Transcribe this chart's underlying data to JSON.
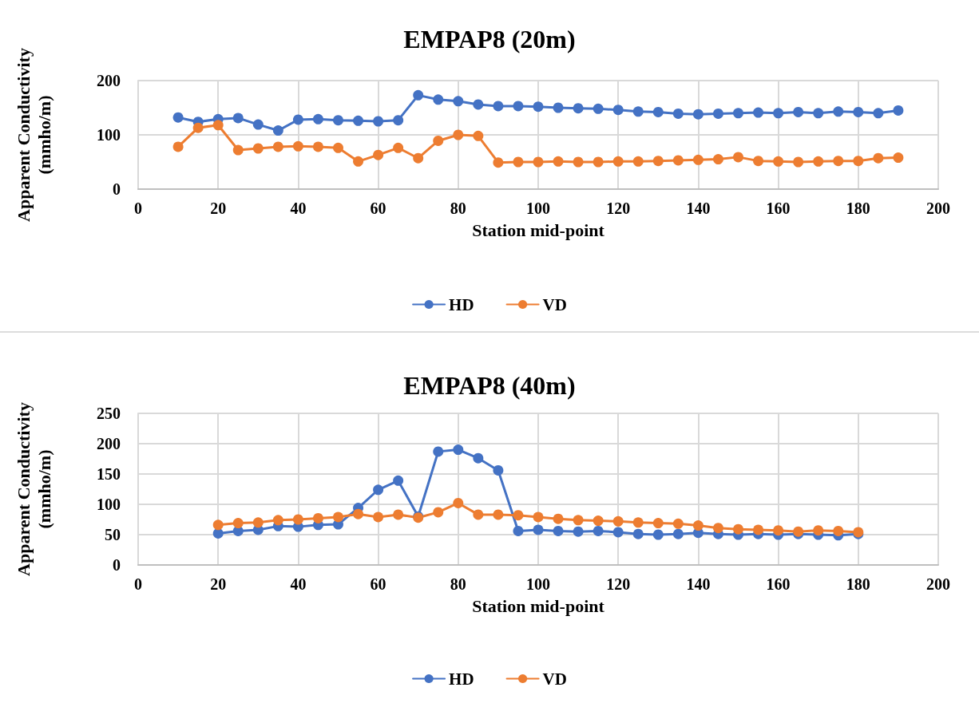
{
  "chart_data": [
    {
      "type": "line",
      "title": "EMPAP8 (20m)",
      "xlabel": "Station mid-point",
      "ylabel": "Apparent Conductivity\n(mmho/m)",
      "x": [
        10,
        15,
        20,
        25,
        30,
        35,
        40,
        45,
        50,
        55,
        60,
        65,
        70,
        75,
        80,
        85,
        90,
        95,
        100,
        105,
        110,
        115,
        120,
        125,
        130,
        135,
        140,
        145,
        150,
        155,
        160,
        165,
        170,
        175,
        180,
        185,
        190
      ],
      "series": [
        {
          "name": "HD",
          "color": "#4472c4",
          "values": [
            132,
            124,
            129,
            131,
            119,
            108,
            128,
            129,
            127,
            126,
            125,
            127,
            173,
            165,
            162,
            156,
            153,
            153,
            152,
            150,
            149,
            148,
            146,
            143,
            142,
            139,
            138,
            139,
            140,
            141,
            140,
            142,
            140,
            143,
            142,
            140,
            145
          ]
        },
        {
          "name": "VD",
          "color": "#ed7d31",
          "values": [
            78,
            113,
            118,
            72,
            75,
            78,
            79,
            78,
            76,
            51,
            63,
            76,
            57,
            89,
            100,
            98,
            49,
            50,
            50,
            51,
            50,
            50,
            51,
            51,
            52,
            53,
            54,
            55,
            59,
            52,
            51,
            50,
            51,
            52,
            52,
            57,
            58
          ]
        }
      ],
      "xlim": [
        0,
        200
      ],
      "xticks": [
        0,
        20,
        40,
        60,
        80,
        100,
        120,
        140,
        160,
        180,
        200
      ],
      "ylim": [
        0,
        200
      ],
      "yticks": [
        0,
        100,
        200
      ],
      "grid": true,
      "legend": "bottom",
      "marker": "circle",
      "line_style": "solid"
    },
    {
      "type": "line",
      "title": "EMPAP8 (40m)",
      "xlabel": "Station mid-point",
      "ylabel": "Apparent Conductivity\n(mmho/m)",
      "x": [
        20,
        25,
        30,
        35,
        40,
        45,
        50,
        55,
        60,
        65,
        70,
        75,
        80,
        85,
        90,
        95,
        100,
        105,
        110,
        115,
        120,
        125,
        130,
        135,
        140,
        145,
        150,
        155,
        160,
        165,
        170,
        175,
        180
      ],
      "series": [
        {
          "name": "HD",
          "color": "#4472c4",
          "values": [
            52,
            56,
            58,
            64,
            63,
            66,
            67,
            94,
            124,
            139,
            80,
            187,
            190,
            176,
            156,
            56,
            58,
            56,
            55,
            56,
            54,
            51,
            50,
            51,
            53,
            51,
            50,
            51,
            50,
            51,
            50,
            49,
            51
          ]
        },
        {
          "name": "VD",
          "color": "#ed7d31",
          "values": [
            66,
            69,
            70,
            74,
            75,
            77,
            79,
            84,
            79,
            83,
            78,
            87,
            102,
            83,
            83,
            82,
            79,
            76,
            74,
            73,
            72,
            70,
            69,
            68,
            65,
            61,
            59,
            58,
            57,
            55,
            57,
            56,
            54
          ]
        }
      ],
      "xlim": [
        0,
        200
      ],
      "xticks": [
        0,
        20,
        40,
        60,
        80,
        100,
        120,
        140,
        160,
        180,
        200
      ],
      "ylim": [
        0,
        250
      ],
      "yticks": [
        0,
        50,
        100,
        150,
        200,
        250
      ],
      "grid": true,
      "legend": "bottom",
      "marker": "circle",
      "line_style": "solid"
    }
  ]
}
